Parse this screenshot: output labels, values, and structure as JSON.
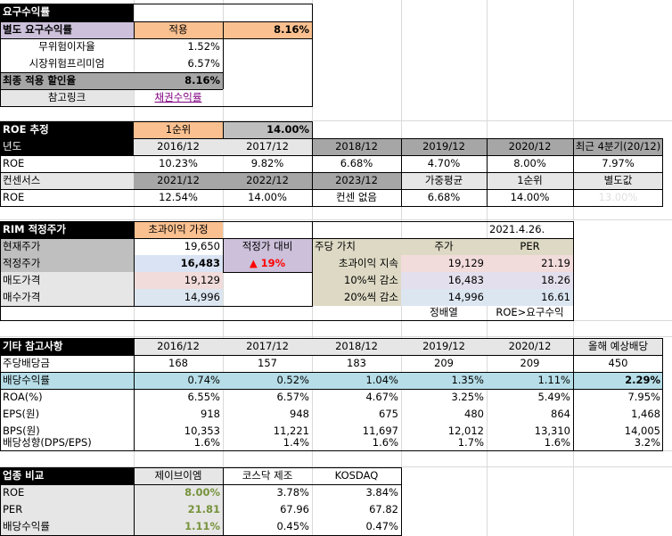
{
  "required_return": {
    "title": "요구수익률",
    "separate_label": "별도 요구수익률",
    "apply_label": "적용",
    "apply_value": "8.16%",
    "risk_free_label": "무위험이자율",
    "risk_free_value": "1.52%",
    "market_premium_label": "시장위험프리미엄",
    "market_premium_value": "6.57%",
    "final_label": "최종 적용 할인율",
    "final_value": "8.16%",
    "ref_label": "참고링크",
    "ref_link": "채권수익률"
  },
  "roe_estimate": {
    "title": "ROE 추정",
    "rank_label": "1순위",
    "rank_value": "14.00%",
    "year_header": "년도",
    "years": [
      "2016/12",
      "2017/12",
      "2018/12",
      "2019/12",
      "2020/12",
      "최근 4분기(20/12)"
    ],
    "roe_label": "ROE",
    "roe_values": [
      "10.23%",
      "9.82%",
      "6.68%",
      "4.70%",
      "8.00%",
      "7.97%"
    ],
    "consensus_header": "컨센서스",
    "consensus_cols": [
      "2021/12",
      "2022/12",
      "2023/12",
      "가중평균",
      "1순위",
      "별도값"
    ],
    "consensus_roe": [
      "12.54%",
      "14.00%",
      "컨센 없음",
      "6.68%",
      "14.00%",
      "13.00%"
    ]
  },
  "rim": {
    "title": "RIM 적정주가",
    "assumption": "초과이익 가정",
    "date": "2021.4.26.",
    "current_price_label": "현재주가",
    "current_price": "19,650",
    "vs_label": "적정가 대비",
    "vs_value": "▲ 19%",
    "fair_price_label": "적정주가",
    "fair_price": "16,483",
    "sell_label": "매도가격",
    "sell_price": "19,129",
    "buy_label": "매수가격",
    "buy_price": "14,996",
    "value_per_share_label": "주당 가치",
    "price_col": "주가",
    "per_col": "PER",
    "scenarios": [
      {
        "label": "초과이익 지속",
        "price": "19,129",
        "per": "21.19"
      },
      {
        "label": "10%씩 감소",
        "price": "16,483",
        "per": "18.26"
      },
      {
        "label": "20%씩 감소",
        "price": "14,996",
        "per": "16.61"
      }
    ],
    "footer_left": "정배열",
    "footer_right": "ROE>요구수익"
  },
  "other": {
    "title": "기타 참고사항",
    "years": [
      "2016/12",
      "2017/12",
      "2018/12",
      "2019/12",
      "2020/12",
      "올해 예상배당"
    ],
    "rows": [
      {
        "label": "주당배당금",
        "values": [
          "168",
          "157",
          "183",
          "209",
          "209",
          "450"
        ]
      },
      {
        "label": "배당수익률",
        "values": [
          "0.74%",
          "0.52%",
          "1.04%",
          "1.35%",
          "1.11%",
          "2.29%"
        ]
      },
      {
        "label": "ROA(%)",
        "values": [
          "6.55%",
          "6.57%",
          "4.67%",
          "3.25%",
          "5.49%",
          "7.95%"
        ]
      },
      {
        "label": "EPS(원)",
        "values": [
          "918",
          "948",
          "675",
          "480",
          "864",
          "1,468"
        ]
      },
      {
        "label": "BPS(원)",
        "values": [
          "10,353",
          "11,221",
          "11,697",
          "12,012",
          "13,310",
          "14,005"
        ]
      },
      {
        "label": "배당성향(DPS/EPS)",
        "values": [
          "1.6%",
          "1.4%",
          "1.6%",
          "1.7%",
          "1.6%",
          "3.2%"
        ]
      }
    ]
  },
  "industry": {
    "title": "업종 비교",
    "cols": [
      "제이브이엠",
      "코스닥 제조",
      "KOSDAQ"
    ],
    "rows": [
      {
        "label": "ROE",
        "values": [
          "8.00%",
          "3.78%",
          "3.84%"
        ]
      },
      {
        "label": "PER",
        "values": [
          "21.81",
          "67.96",
          "67.82"
        ]
      },
      {
        "label": "배당수익률",
        "values": [
          "1.11%",
          "0.45%",
          "0.47%"
        ]
      }
    ]
  }
}
